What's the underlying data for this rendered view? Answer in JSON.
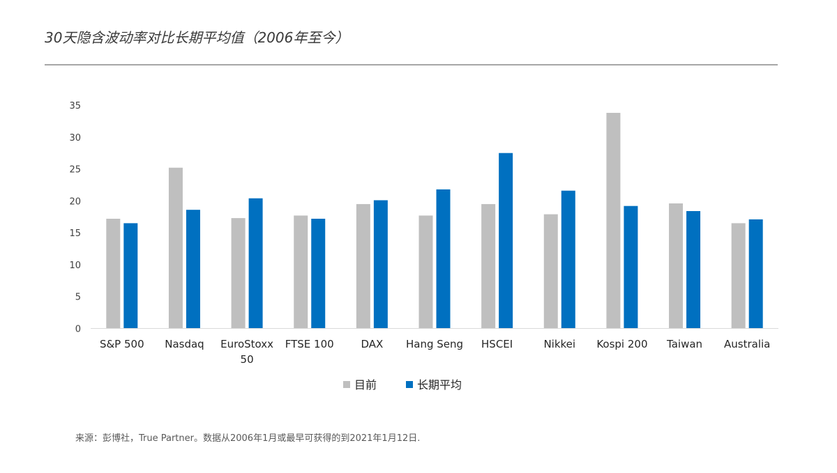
{
  "title": "30天隐含波动率对比长期平均值（2006年至今）",
  "source": "来源：彭博社，True Partner。数据从2006年1月或最早可获得的到2021年1月12日.",
  "chart_data": {
    "type": "bar",
    "categories": [
      [
        "S&P 500"
      ],
      [
        "Nasdaq"
      ],
      [
        "EuroStoxx",
        "50"
      ],
      [
        "FTSE 100"
      ],
      [
        "DAX"
      ],
      [
        "Hang Seng"
      ],
      [
        "HSCEI"
      ],
      [
        "Nikkei"
      ],
      [
        "Kospi 200"
      ],
      [
        "Taiwan"
      ],
      [
        "Australia"
      ]
    ],
    "series": [
      {
        "name": "目前",
        "color": "#bfbfbf",
        "values": [
          17.2,
          25.2,
          17.3,
          17.7,
          19.5,
          17.7,
          19.5,
          17.9,
          33.8,
          19.6,
          16.5
        ]
      },
      {
        "name": "长期平均",
        "color": "#0070c0",
        "values": [
          16.5,
          18.6,
          20.4,
          17.2,
          20.1,
          21.8,
          27.5,
          21.6,
          19.2,
          18.4,
          17.1
        ]
      }
    ],
    "ylim": [
      0,
      35
    ],
    "yticks": [
      0,
      5,
      10,
      15,
      20,
      25,
      30,
      35
    ],
    "grid": false,
    "legend": "bottom-center"
  }
}
